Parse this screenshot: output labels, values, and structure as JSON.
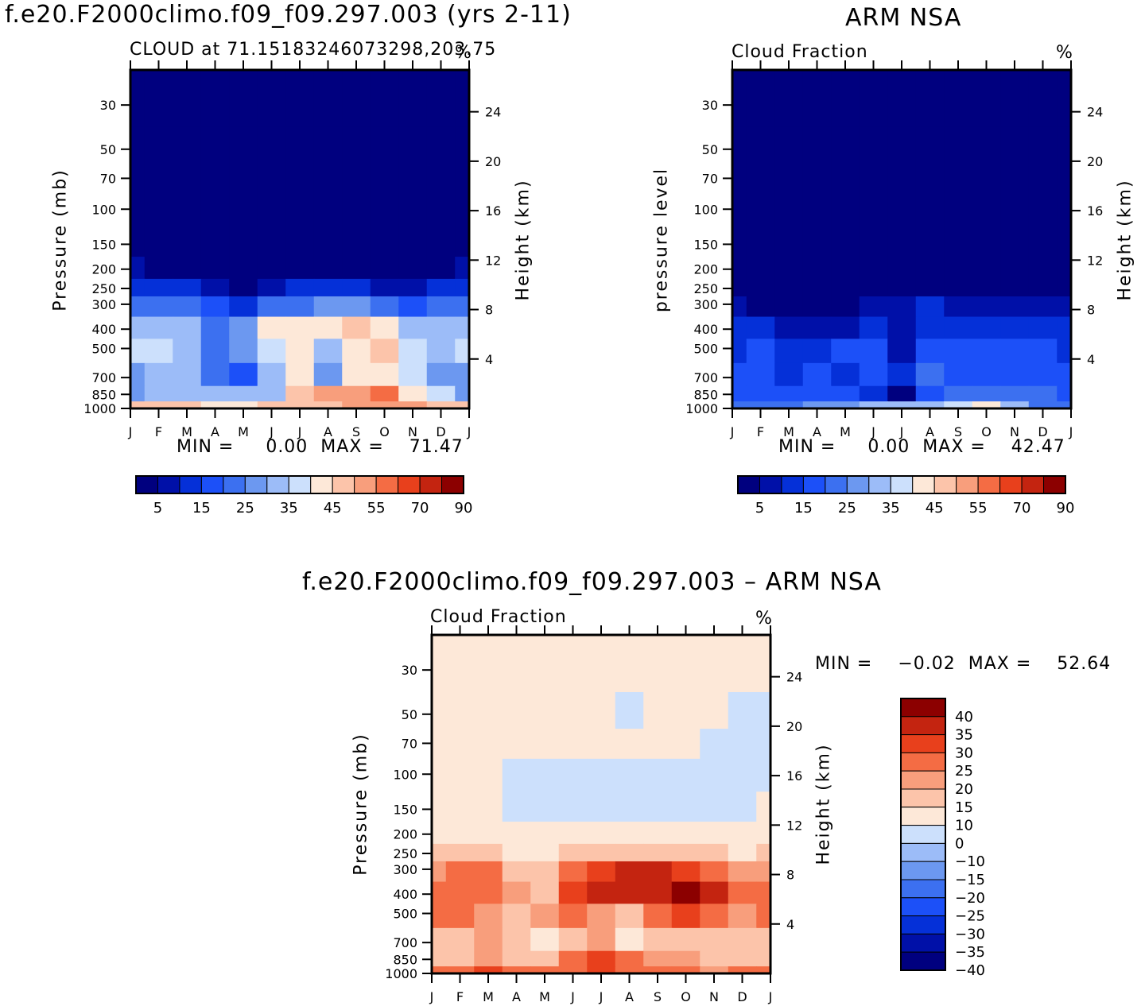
{
  "panel_top_left": {
    "title": "f.e20.F2000climo.f09_f09.297.003 (yrs 2-11)",
    "left_string": "CLOUD at 71.15183246073298,203.75",
    "right_string": "%",
    "ylabel": "Pressure (mb)",
    "ylabel_right": "Height (km)",
    "stats": "MIN =     0.00  MAX =    71.47"
  },
  "panel_top_right": {
    "title": "ARM NSA",
    "left_string": "Cloud Fraction",
    "right_string": "%",
    "ylabel": "pressure level",
    "ylabel_right": "Height (km)",
    "stats": "MIN =     0.00  MAX =    42.47"
  },
  "panel_bottom": {
    "title": "f.e20.F2000climo.f09_f09.297.003 – ARM NSA",
    "left_string": "Cloud Fraction",
    "right_string": "%",
    "ylabel": "Pressure (mb)",
    "ylabel_right": "Height (km)",
    "stats": "MIN =    −0.02  MAX =    52.64"
  },
  "colors": {
    "abs_palette": [
      "#00007f",
      "#0010a8",
      "#0530d8",
      "#1c50f8",
      "#3c70f0",
      "#6c98f0",
      "#9cbcf8",
      "#cce0fc",
      "#fde8d8",
      "#fcc4aa",
      "#f89e7c",
      "#f46c44",
      "#e8401c",
      "#c42410",
      "#8c0000"
    ],
    "diff_palette": [
      "#00007f",
      "#0010a8",
      "#0530d8",
      "#1c50f8",
      "#3c70f0",
      "#6c98f0",
      "#9cbcf8",
      "#cce0fc",
      "#fde8d8",
      "#fcc4aa",
      "#f89e7c",
      "#f46c44",
      "#e8401c",
      "#c42410",
      "#8c0000"
    ]
  },
  "chart_data": [
    {
      "type": "heatmap",
      "name": "model",
      "x_ticks": [
        "J",
        "F",
        "M",
        "A",
        "M",
        "J",
        "J",
        "A",
        "S",
        "O",
        "N",
        "D",
        "J"
      ],
      "y_ticks": [
        "30",
        "50",
        "70",
        "100",
        "150",
        "200",
        "250",
        "300",
        "400",
        "500",
        "700",
        "850",
        "1000"
      ],
      "y_right_ticks": [
        "24",
        "20",
        "16",
        "12",
        "8",
        "4"
      ],
      "ylim": [
        1000,
        20
      ],
      "y_scale": "log",
      "levels_labels": [
        "5",
        "15",
        "25",
        "35",
        "45",
        "55",
        "70",
        "90"
      ],
      "months": [
        "J",
        "F",
        "M",
        "A",
        "M",
        "J",
        "J",
        "A",
        "S",
        "O",
        "N",
        "D",
        "J"
      ],
      "pressure_levels": [
        30,
        50,
        70,
        100,
        150,
        200,
        250,
        300,
        400,
        500,
        700,
        850,
        1000
      ],
      "values": [
        [
          0,
          0,
          0,
          0,
          0,
          0,
          0,
          0,
          0,
          0,
          0,
          0,
          0
        ],
        [
          0,
          0,
          0,
          0,
          0,
          0,
          0,
          0,
          0,
          0,
          0,
          0,
          0
        ],
        [
          0,
          0,
          0,
          0,
          0,
          0,
          0,
          0,
          0,
          0,
          0,
          0,
          0
        ],
        [
          0,
          0,
          0,
          0,
          0,
          0,
          0,
          0,
          0,
          0,
          0,
          0,
          0
        ],
        [
          0,
          0,
          0,
          0,
          0,
          0,
          0,
          0,
          0,
          0,
          0,
          0,
          0
        ],
        [
          6,
          4,
          3,
          0,
          0,
          1,
          2,
          3,
          2,
          1,
          1,
          2,
          6
        ],
        [
          14,
          12,
          12,
          6,
          4,
          8,
          10,
          12,
          10,
          8,
          8,
          10,
          14
        ],
        [
          24,
          24,
          22,
          16,
          12,
          20,
          24,
          28,
          26,
          20,
          18,
          22,
          24
        ],
        [
          30,
          32,
          30,
          22,
          28,
          40,
          44,
          44,
          46,
          42,
          34,
          32,
          30
        ],
        [
          36,
          36,
          30,
          24,
          26,
          38,
          42,
          30,
          44,
          46,
          36,
          34,
          36
        ],
        [
          28,
          34,
          32,
          20,
          18,
          30,
          40,
          26,
          40,
          40,
          36,
          28,
          28
        ],
        [
          26,
          32,
          32,
          30,
          30,
          34,
          46,
          50,
          54,
          56,
          44,
          36,
          26
        ],
        [
          46,
          46,
          48,
          44,
          42,
          46,
          46,
          48,
          50,
          52,
          50,
          46,
          46
        ]
      ]
    },
    {
      "type": "heatmap",
      "name": "observations",
      "x_ticks": [
        "J",
        "F",
        "M",
        "A",
        "M",
        "J",
        "J",
        "A",
        "S",
        "O",
        "N",
        "D",
        "J"
      ],
      "y_ticks": [
        "30",
        "50",
        "70",
        "100",
        "150",
        "200",
        "250",
        "300",
        "400",
        "500",
        "700",
        "850",
        "1000"
      ],
      "y_right_ticks": [
        "24",
        "20",
        "16",
        "12",
        "8",
        "4"
      ],
      "ylim": [
        1000,
        20
      ],
      "y_scale": "log",
      "levels_labels": [
        "5",
        "15",
        "25",
        "35",
        "45",
        "55",
        "70",
        "90"
      ],
      "months": [
        "J",
        "F",
        "M",
        "A",
        "M",
        "J",
        "J",
        "A",
        "S",
        "O",
        "N",
        "D",
        "J"
      ],
      "pressure_levels": [
        30,
        50,
        70,
        100,
        150,
        200,
        250,
        300,
        400,
        500,
        700,
        850,
        1000
      ],
      "values": [
        [
          0,
          0,
          0,
          0,
          0,
          0,
          0,
          0,
          0,
          0,
          0,
          0,
          0
        ],
        [
          0,
          0,
          0,
          0,
          0,
          0,
          0,
          0,
          0,
          0,
          0,
          0,
          0
        ],
        [
          0,
          0,
          0,
          0,
          0,
          0,
          0,
          0,
          0,
          0,
          0,
          0,
          0
        ],
        [
          0,
          0,
          0,
          0,
          0,
          0,
          0,
          0,
          0,
          0,
          0,
          0,
          0
        ],
        [
          0,
          0,
          0,
          0,
          0,
          0,
          0,
          0,
          0,
          0,
          0,
          0,
          0
        ],
        [
          0,
          0,
          0,
          0,
          0,
          0,
          0,
          0,
          0,
          0,
          0,
          0,
          0
        ],
        [
          1,
          1,
          1,
          1,
          1,
          2,
          3,
          3,
          2,
          1,
          1,
          1,
          1
        ],
        [
          6,
          4,
          3,
          3,
          4,
          6,
          8,
          10,
          8,
          6,
          6,
          8,
          6
        ],
        [
          12,
          10,
          8,
          8,
          8,
          10,
          8,
          12,
          12,
          10,
          10,
          10,
          12
        ],
        [
          14,
          16,
          14,
          14,
          18,
          16,
          8,
          18,
          18,
          16,
          16,
          18,
          14
        ],
        [
          18,
          18,
          14,
          16,
          14,
          16,
          14,
          20,
          16,
          18,
          18,
          18,
          18
        ],
        [
          16,
          18,
          18,
          18,
          16,
          14,
          4,
          18,
          22,
          24,
          22,
          20,
          16
        ],
        [
          20,
          22,
          24,
          26,
          28,
          34,
          30,
          34,
          38,
          42,
          30,
          24,
          20
        ]
      ]
    },
    {
      "type": "heatmap",
      "name": "difference",
      "x_ticks": [
        "J",
        "F",
        "M",
        "A",
        "M",
        "J",
        "J",
        "A",
        "S",
        "O",
        "N",
        "D",
        "J"
      ],
      "y_ticks": [
        "30",
        "50",
        "70",
        "100",
        "150",
        "200",
        "250",
        "300",
        "400",
        "500",
        "700",
        "850",
        "1000"
      ],
      "y_right_ticks": [
        "24",
        "20",
        "16",
        "12",
        "8",
        "4"
      ],
      "ylim": [
        1000,
        20
      ],
      "y_scale": "log",
      "levels_labels": [
        "40",
        "35",
        "30",
        "25",
        "20",
        "15",
        "10",
        "0",
        "−10",
        "−15",
        "−20",
        "−25",
        "−30",
        "−35",
        "−40"
      ],
      "months": [
        "J",
        "F",
        "M",
        "A",
        "M",
        "J",
        "J",
        "A",
        "S",
        "O",
        "N",
        "D",
        "J"
      ],
      "pressure_levels": [
        30,
        50,
        70,
        100,
        150,
        200,
        250,
        300,
        400,
        500,
        700,
        850,
        1000
      ],
      "values": [
        [
          2,
          2,
          2,
          2,
          2,
          2,
          2,
          2,
          2,
          2,
          2,
          2,
          2
        ],
        [
          2,
          2,
          2,
          2,
          2,
          2,
          2,
          -2,
          2,
          2,
          2,
          -2,
          -2
        ],
        [
          2,
          2,
          2,
          2,
          2,
          2,
          2,
          2,
          2,
          2,
          -2,
          -2,
          -2
        ],
        [
          2,
          2,
          2,
          -2,
          -2,
          -2,
          -2,
          -2,
          -2,
          -2,
          -2,
          -2,
          -2
        ],
        [
          2,
          2,
          2,
          -2,
          -2,
          -2,
          -2,
          -2,
          -2,
          -2,
          -2,
          -2,
          2
        ],
        [
          2,
          2,
          2,
          2,
          2,
          2,
          2,
          2,
          2,
          2,
          2,
          2,
          2
        ],
        [
          12,
          14,
          12,
          8,
          6,
          10,
          12,
          14,
          12,
          12,
          10,
          8,
          12
        ],
        [
          18,
          22,
          20,
          14,
          12,
          24,
          28,
          32,
          32,
          28,
          22,
          18,
          18
        ],
        [
          20,
          24,
          22,
          16,
          14,
          28,
          32,
          30,
          34,
          36,
          30,
          20,
          20
        ],
        [
          22,
          20,
          16,
          14,
          16,
          20,
          18,
          12,
          22,
          28,
          22,
          16,
          22
        ],
        [
          14,
          14,
          16,
          14,
          8,
          10,
          16,
          6,
          14,
          14,
          14,
          12,
          14
        ],
        [
          12,
          14,
          16,
          14,
          12,
          20,
          28,
          20,
          18,
          16,
          14,
          12,
          12
        ],
        [
          20,
          22,
          26,
          22,
          20,
          24,
          26,
          24,
          22,
          20,
          18,
          20,
          20
        ]
      ]
    }
  ]
}
